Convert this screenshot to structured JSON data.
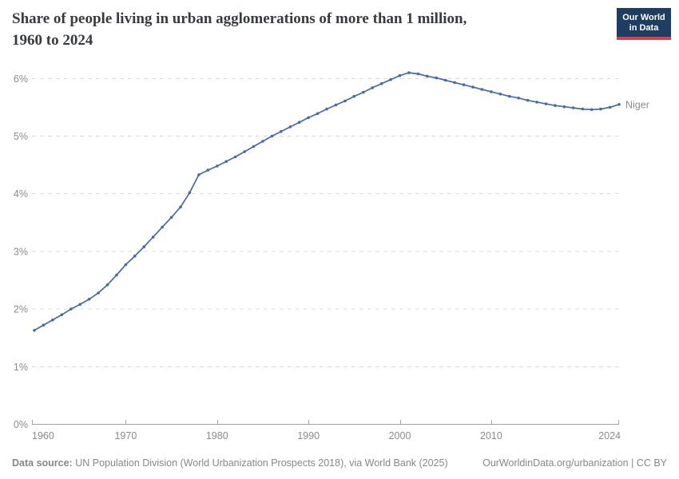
{
  "header": {
    "title_line1": "Share of people living in urban agglomerations of more than 1 million,",
    "title_line2": "1960 to 2024"
  },
  "logo": {
    "line1": "Our World",
    "line2": "in Data",
    "bg": "#1d3d63",
    "accent": "#dc3b4d"
  },
  "chart_data": {
    "type": "line",
    "title": "Share of people living in urban agglomerations of more than 1 million, 1960 to 2024",
    "xlabel": "",
    "ylabel": "",
    "xlim": [
      1960,
      2024
    ],
    "ylim": [
      0,
      6.3
    ],
    "grid": "horizontal-dashed",
    "legend_position": "end-of-line-label",
    "yticks": [
      {
        "value": 0,
        "label": "0%"
      },
      {
        "value": 1,
        "label": "1%"
      },
      {
        "value": 2,
        "label": "2%"
      },
      {
        "value": 3,
        "label": "3%"
      },
      {
        "value": 4,
        "label": "4%"
      },
      {
        "value": 5,
        "label": "5%"
      },
      {
        "value": 6,
        "label": "6%"
      }
    ],
    "xticks": [
      {
        "year": 1960,
        "label": "1960"
      },
      {
        "year": 1970,
        "label": "1970"
      },
      {
        "year": 1980,
        "label": "1980"
      },
      {
        "year": 1990,
        "label": "1990"
      },
      {
        "year": 2000,
        "label": "2000"
      },
      {
        "year": 2010,
        "label": "2010"
      },
      {
        "year": 2024,
        "label": "2024"
      }
    ],
    "series": [
      {
        "name": "Niger",
        "color": "#4a69a4",
        "points": [
          [
            1960,
            1.63
          ],
          [
            1961,
            1.72
          ],
          [
            1962,
            1.81
          ],
          [
            1963,
            1.9
          ],
          [
            1964,
            2.0
          ],
          [
            1965,
            2.08
          ],
          [
            1966,
            2.17
          ],
          [
            1967,
            2.28
          ],
          [
            1968,
            2.42
          ],
          [
            1969,
            2.59
          ],
          [
            1970,
            2.77
          ],
          [
            1971,
            2.92
          ],
          [
            1972,
            3.08
          ],
          [
            1973,
            3.25
          ],
          [
            1974,
            3.42
          ],
          [
            1975,
            3.59
          ],
          [
            1976,
            3.77
          ],
          [
            1977,
            4.02
          ],
          [
            1978,
            4.33
          ],
          [
            1979,
            4.41
          ],
          [
            1980,
            4.48
          ],
          [
            1981,
            4.56
          ],
          [
            1982,
            4.64
          ],
          [
            1983,
            4.73
          ],
          [
            1984,
            4.82
          ],
          [
            1985,
            4.91
          ],
          [
            1986,
            5.0
          ],
          [
            1987,
            5.08
          ],
          [
            1988,
            5.16
          ],
          [
            1989,
            5.24
          ],
          [
            1990,
            5.32
          ],
          [
            1991,
            5.39
          ],
          [
            1992,
            5.47
          ],
          [
            1993,
            5.54
          ],
          [
            1994,
            5.61
          ],
          [
            1995,
            5.69
          ],
          [
            1996,
            5.76
          ],
          [
            1997,
            5.84
          ],
          [
            1998,
            5.91
          ],
          [
            1999,
            5.98
          ],
          [
            2000,
            6.05
          ],
          [
            2001,
            6.1
          ],
          [
            2002,
            6.08
          ],
          [
            2003,
            6.04
          ],
          [
            2004,
            6.01
          ],
          [
            2005,
            5.97
          ],
          [
            2006,
            5.93
          ],
          [
            2007,
            5.89
          ],
          [
            2008,
            5.85
          ],
          [
            2009,
            5.81
          ],
          [
            2010,
            5.77
          ],
          [
            2011,
            5.73
          ],
          [
            2012,
            5.69
          ],
          [
            2013,
            5.66
          ],
          [
            2014,
            5.62
          ],
          [
            2015,
            5.59
          ],
          [
            2016,
            5.56
          ],
          [
            2017,
            5.53
          ],
          [
            2018,
            5.51
          ],
          [
            2019,
            5.49
          ],
          [
            2020,
            5.47
          ],
          [
            2021,
            5.46
          ],
          [
            2022,
            5.47
          ],
          [
            2023,
            5.5
          ],
          [
            2024,
            5.55
          ]
        ]
      }
    ]
  },
  "colors": {
    "line": "#4a69a4",
    "grid": "#dcdcdc",
    "axis": "#a3a3a3",
    "tick_label": "#8b8b8b",
    "title": "#383a3e",
    "footer": "#878787"
  },
  "footer": {
    "source_label": "Data source:",
    "source_rest": " UN Population Division (World Urbanization Prospects 2018), via World Bank (2025)",
    "right_text": "OurWorldinData.org/urbanization | CC BY"
  }
}
